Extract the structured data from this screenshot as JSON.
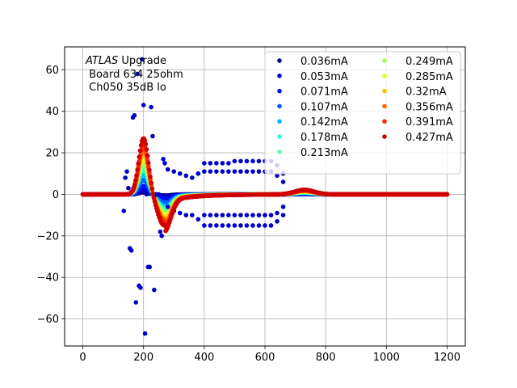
{
  "chart_data": {
    "type": "scatter",
    "title": "",
    "xlabel": "",
    "ylabel": "",
    "xlim": [
      -60,
      1260
    ],
    "ylim": [
      -73,
      71
    ],
    "xticks": [
      0,
      200,
      400,
      600,
      800,
      1000,
      1200
    ],
    "yticks": [
      -60,
      -40,
      -20,
      0,
      20,
      40,
      60
    ],
    "grid": true,
    "legend": {
      "position": "top-right",
      "columns": 2
    },
    "annotation": {
      "italic": "ATLAS",
      "rest": " Upgrade",
      "line2": " Board 634 25ohm",
      "line3": " Ch050 35dB lo"
    },
    "series": [
      {
        "name": "0.036mA",
        "color": "#00007f",
        "amplitude": 1
      },
      {
        "name": "0.053mA",
        "color": "#0000c8",
        "amplitude": 2
      },
      {
        "name": "0.071mA",
        "color": "#0010ff",
        "amplitude": 4
      },
      {
        "name": "0.107mA",
        "color": "#0060ff",
        "amplitude": 7
      },
      {
        "name": "0.142mA",
        "color": "#00b4ff",
        "amplitude": 10
      },
      {
        "name": "0.178mA",
        "color": "#26ffd0",
        "amplitude": 12
      },
      {
        "name": "0.213mA",
        "color": "#5effb0",
        "amplitude": 14
      },
      {
        "name": "0.249mA",
        "color": "#a0ff56",
        "amplitude": 16
      },
      {
        "name": "0.285mA",
        "color": "#e4ff12",
        "amplitude": 18
      },
      {
        "name": "0.32mA",
        "color": "#ffc400",
        "amplitude": 20
      },
      {
        "name": "0.356mA",
        "color": "#ff6800",
        "amplitude": 22
      },
      {
        "name": "0.391mA",
        "color": "#ff2a00",
        "amplitude": 24
      },
      {
        "name": "0.427mA",
        "color": "#d00000",
        "amplitude": 27
      }
    ],
    "outliers": {
      "series_index": 1,
      "points": [
        [
          135,
          -8
        ],
        [
          140,
          8
        ],
        [
          145,
          11
        ],
        [
          150,
          3
        ],
        [
          155,
          -26
        ],
        [
          160,
          -27
        ],
        [
          165,
          37
        ],
        [
          170,
          38
        ],
        [
          175,
          -52
        ],
        [
          180,
          58
        ],
        [
          185,
          -44
        ],
        [
          190,
          -45
        ],
        [
          195,
          65
        ],
        [
          200,
          43
        ],
        [
          205,
          -67
        ],
        [
          210,
          0
        ],
        [
          215,
          -35
        ],
        [
          220,
          -35
        ],
        [
          225,
          42
        ],
        [
          230,
          28
        ],
        [
          235,
          -46
        ],
        [
          240,
          0
        ],
        [
          245,
          0
        ],
        [
          250,
          0
        ],
        [
          255,
          -18
        ],
        [
          260,
          -20
        ],
        [
          265,
          17
        ],
        [
          270,
          15
        ],
        [
          280,
          12
        ],
        [
          300,
          11
        ],
        [
          320,
          10
        ],
        [
          340,
          9
        ],
        [
          360,
          8
        ],
        [
          380,
          10
        ],
        [
          400,
          15
        ],
        [
          420,
          15
        ],
        [
          440,
          15
        ],
        [
          460,
          15
        ],
        [
          480,
          15
        ],
        [
          500,
          16
        ],
        [
          520,
          16
        ],
        [
          540,
          16
        ],
        [
          560,
          16
        ],
        [
          580,
          16
        ],
        [
          600,
          16
        ],
        [
          620,
          16
        ],
        [
          640,
          14
        ],
        [
          660,
          10
        ],
        [
          280,
          -6
        ],
        [
          300,
          -8
        ],
        [
          320,
          -9
        ],
        [
          340,
          -10
        ],
        [
          360,
          -10
        ],
        [
          380,
          -12
        ],
        [
          400,
          -10
        ],
        [
          420,
          -10
        ],
        [
          440,
          -10
        ],
        [
          460,
          -10
        ],
        [
          480,
          -10
        ],
        [
          500,
          -10
        ],
        [
          520,
          -10
        ],
        [
          540,
          -10
        ],
        [
          560,
          -10
        ],
        [
          580,
          -10
        ],
        [
          600,
          -10
        ],
        [
          620,
          -10
        ],
        [
          640,
          -9
        ],
        [
          660,
          -6
        ],
        [
          400,
          -15
        ],
        [
          420,
          -15
        ],
        [
          440,
          -15
        ],
        [
          460,
          -15
        ],
        [
          480,
          -15
        ],
        [
          500,
          -15
        ],
        [
          520,
          -15
        ],
        [
          540,
          -15
        ],
        [
          560,
          -15
        ],
        [
          580,
          -15
        ],
        [
          600,
          -15
        ],
        [
          620,
          -15
        ],
        [
          640,
          -13
        ],
        [
          660,
          -10
        ],
        [
          400,
          11
        ],
        [
          420,
          11
        ],
        [
          440,
          11
        ],
        [
          460,
          11
        ],
        [
          480,
          11
        ],
        [
          500,
          11
        ],
        [
          520,
          11
        ],
        [
          540,
          11
        ],
        [
          560,
          11
        ],
        [
          580,
          11
        ],
        [
          600,
          11
        ],
        [
          620,
          11
        ],
        [
          640,
          9
        ],
        [
          660,
          6
        ]
      ]
    }
  }
}
